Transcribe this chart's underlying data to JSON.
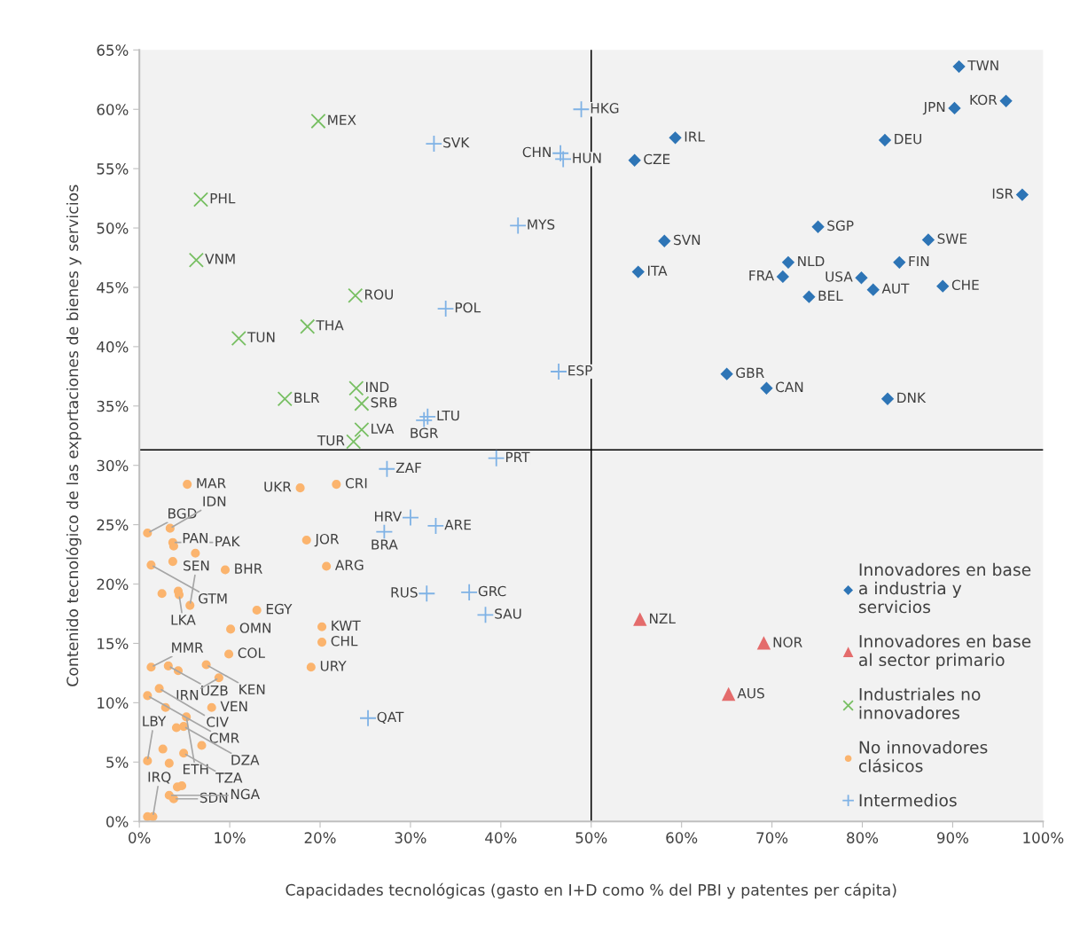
{
  "chart_data": {
    "type": "scatter",
    "xlabel": "Capacidades tecnológicas (gasto en I+D como % del PBI y patentes per cápita)",
    "ylabel": "Contenido tecnológico de las exportaciones de bienes y servicios",
    "xlim": [
      0,
      100
    ],
    "ylim": [
      0,
      65
    ],
    "xticks": [
      {
        "value": 0,
        "label": "0%"
      },
      {
        "value": 10,
        "label": "10%"
      },
      {
        "value": 20,
        "label": "20%"
      },
      {
        "value": 30,
        "label": "30%"
      },
      {
        "value": 40,
        "label": "40%"
      },
      {
        "value": 50,
        "label": "50%"
      },
      {
        "value": 60,
        "label": "60%"
      },
      {
        "value": 70,
        "label": "70%"
      },
      {
        "value": 80,
        "label": "80%"
      },
      {
        "value": 90,
        "label": "90%"
      },
      {
        "value": 100,
        "label": "100%"
      }
    ],
    "yticks": [
      {
        "value": 0,
        "label": "0%"
      },
      {
        "value": 5,
        "label": "5%"
      },
      {
        "value": 10,
        "label": "10%"
      },
      {
        "value": 15,
        "label": "15%"
      },
      {
        "value": 20,
        "label": "20%"
      },
      {
        "value": 25,
        "label": "25%"
      },
      {
        "value": 30,
        "label": "30%"
      },
      {
        "value": 35,
        "label": "35%"
      },
      {
        "value": 40,
        "label": "40%"
      },
      {
        "value": 45,
        "label": "45%"
      },
      {
        "value": 50,
        "label": "50%"
      },
      {
        "value": 55,
        "label": "55%"
      },
      {
        "value": 60,
        "label": "60%"
      },
      {
        "value": 65,
        "label": "65%"
      }
    ],
    "grid": false,
    "legend": "bottom right",
    "ref_lines": [
      {
        "axis": "x",
        "value": 50,
        "label": null,
        "color": "#000000"
      },
      {
        "axis": "y",
        "value": 31.3,
        "label": null,
        "color": "#000000"
      }
    ],
    "series": [
      {
        "name": "Innovadores en base\na industria y\nservicios",
        "color": "#2e75b6",
        "marker": "diamond",
        "x": [
          90.7,
          95.9,
          90.2,
          82.5,
          59.3,
          54.8,
          97.7,
          75.1,
          58.1,
          87.3,
          71.8,
          84.1,
          55.2,
          71.2,
          79.9,
          88.9,
          81.2,
          74.1,
          65.0,
          69.4,
          82.8
        ],
        "values": [
          63.6,
          60.7,
          60.1,
          57.4,
          57.6,
          55.7,
          52.8,
          50.1,
          48.9,
          49.0,
          47.1,
          47.1,
          46.3,
          45.9,
          45.8,
          45.1,
          44.8,
          44.2,
          37.7,
          36.5,
          35.6
        ]
      },
      {
        "name": "Innovadores en base\nal sector primario",
        "color": "#e46c6c",
        "marker": "triangle",
        "x": [
          55.4,
          69.1,
          65.2
        ],
        "values": [
          17.0,
          15.0,
          10.7
        ]
      },
      {
        "name": "Industriales no\ninnovadores",
        "color": "#78bf63",
        "marker": "x",
        "x": [
          19.8,
          6.8,
          6.3,
          23.9,
          18.6,
          11.0,
          24.0,
          16.1,
          24.6,
          24.6,
          23.7
        ],
        "values": [
          59.0,
          52.4,
          47.3,
          44.3,
          41.7,
          40.7,
          36.5,
          35.6,
          35.2,
          33.0,
          32.0
        ]
      },
      {
        "name": "No innovadores\nclásicos",
        "color": "#fbb46e",
        "marker": "circle",
        "x": [
          5.3,
          17.8,
          21.8,
          0.9,
          3.4,
          3.7,
          3.8,
          6.2,
          18.5,
          3.7,
          1.3,
          9.5,
          20.7,
          2.5,
          4.3,
          4.4,
          5.6,
          13.0,
          10.1,
          20.2,
          20.2,
          9.9,
          1.3,
          3.2,
          4.3,
          7.4,
          19.0,
          8.8,
          2.2,
          0.9,
          2.9,
          8.0,
          5.2,
          4.9,
          4.1,
          6.9,
          4.9,
          2.6,
          0.9,
          3.3,
          3.8,
          3.3,
          4.2,
          4.7,
          1.5,
          0.9
        ],
        "values": [
          28.4,
          28.1,
          28.4,
          24.3,
          24.7,
          23.5,
          23.2,
          22.6,
          23.7,
          21.9,
          21.6,
          21.2,
          21.5,
          19.2,
          19.4,
          19.1,
          18.2,
          17.8,
          16.2,
          16.4,
          15.1,
          14.1,
          13.0,
          13.1,
          12.7,
          13.2,
          13.0,
          12.1,
          11.2,
          10.6,
          9.6,
          9.6,
          8.8,
          8.0,
          7.9,
          6.4,
          5.75,
          6.1,
          5.1,
          4.9,
          1.9,
          2.2,
          2.9,
          3.0,
          0.4,
          0.4
        ]
      },
      {
        "name": "Intermedios",
        "color": "#7fb2e5",
        "marker": "cross",
        "x": [
          48.9,
          32.6,
          46.6,
          46.9,
          41.9,
          33.9,
          46.4,
          31.9,
          31.5,
          39.5,
          27.4,
          30.0,
          32.8,
          27.1,
          31.8,
          36.5,
          38.3,
          25.3
        ],
        "values": [
          60.0,
          57.1,
          56.3,
          55.8,
          50.2,
          43.2,
          37.9,
          34.1,
          33.8,
          30.6,
          29.7,
          25.6,
          24.9,
          24.4,
          19.2,
          19.3,
          17.4,
          8.7
        ]
      }
    ],
    "annotations": [
      {
        "text": "TWN",
        "x": 90.7,
        "y": 63.6
      },
      {
        "text": "KOR",
        "x": 95.9,
        "y": 60.7
      },
      {
        "text": "JPN",
        "x": 90.2,
        "y": 60.1
      },
      {
        "text": "DEU",
        "x": 82.5,
        "y": 57.4
      },
      {
        "text": "IRL",
        "x": 59.3,
        "y": 57.6
      },
      {
        "text": "CZE",
        "x": 54.8,
        "y": 55.7
      },
      {
        "text": "ISR",
        "x": 97.7,
        "y": 52.8
      },
      {
        "text": "SGP",
        "x": 75.1,
        "y": 50.1
      },
      {
        "text": "SVN",
        "x": 58.1,
        "y": 48.9
      },
      {
        "text": "SWE",
        "x": 87.3,
        "y": 49.0
      },
      {
        "text": "NLD",
        "x": 71.8,
        "y": 47.1
      },
      {
        "text": "FIN",
        "x": 84.1,
        "y": 47.1
      },
      {
        "text": "ITA",
        "x": 55.2,
        "y": 46.3
      },
      {
        "text": "FRA",
        "x": 71.2,
        "y": 45.9
      },
      {
        "text": "USA",
        "x": 79.9,
        "y": 45.8
      },
      {
        "text": "CHE",
        "x": 88.9,
        "y": 45.1
      },
      {
        "text": "AUT",
        "x": 81.2,
        "y": 44.8
      },
      {
        "text": "BEL",
        "x": 74.1,
        "y": 44.2
      },
      {
        "text": "GBR",
        "x": 65.0,
        "y": 37.7
      },
      {
        "text": "CAN",
        "x": 69.4,
        "y": 36.5
      },
      {
        "text": "DNK",
        "x": 82.8,
        "y": 35.6
      },
      {
        "text": "NZL",
        "x": 55.4,
        "y": 17.0
      },
      {
        "text": "NOR",
        "x": 69.1,
        "y": 15.0
      },
      {
        "text": "AUS",
        "x": 65.2,
        "y": 10.7
      },
      {
        "text": "MEX",
        "x": 19.8,
        "y": 59.0
      },
      {
        "text": "PHL",
        "x": 6.8,
        "y": 52.4
      },
      {
        "text": "VNM",
        "x": 6.3,
        "y": 47.3
      },
      {
        "text": "ROU",
        "x": 23.9,
        "y": 44.3
      },
      {
        "text": "THA",
        "x": 18.6,
        "y": 41.7
      },
      {
        "text": "TUN",
        "x": 11.0,
        "y": 40.7
      },
      {
        "text": "IND",
        "x": 24.0,
        "y": 36.5
      },
      {
        "text": "BLR",
        "x": 16.1,
        "y": 35.6
      },
      {
        "text": "SRB",
        "x": 24.6,
        "y": 35.2
      },
      {
        "text": "LVA",
        "x": 24.6,
        "y": 33.0
      },
      {
        "text": "TUR",
        "x": 23.7,
        "y": 32.0
      },
      {
        "text": "HKG",
        "x": 48.9,
        "y": 60.0
      },
      {
        "text": "SVK",
        "x": 32.6,
        "y": 57.1
      },
      {
        "text": "CHN",
        "x": 46.6,
        "y": 56.3
      },
      {
        "text": "HUN",
        "x": 46.9,
        "y": 55.8
      },
      {
        "text": "MYS",
        "x": 41.9,
        "y": 50.2
      },
      {
        "text": "POL",
        "x": 33.9,
        "y": 43.2
      },
      {
        "text": "ESP",
        "x": 46.4,
        "y": 37.9
      },
      {
        "text": "LTU",
        "x": 31.9,
        "y": 34.1
      },
      {
        "text": "BGR",
        "x": 31.5,
        "y": 33.8
      },
      {
        "text": "PRT",
        "x": 39.5,
        "y": 30.6
      },
      {
        "text": "ZAF",
        "x": 27.4,
        "y": 29.7
      },
      {
        "text": "HRV",
        "x": 30.0,
        "y": 25.6
      },
      {
        "text": "ARE",
        "x": 32.8,
        "y": 24.9
      },
      {
        "text": "BRA",
        "x": 27.1,
        "y": 24.4
      },
      {
        "text": "RUS",
        "x": 31.8,
        "y": 19.2
      },
      {
        "text": "GRC",
        "x": 36.5,
        "y": 19.3
      },
      {
        "text": "SAU",
        "x": 38.3,
        "y": 17.4
      },
      {
        "text": "QAT",
        "x": 25.3,
        "y": 8.7
      },
      {
        "text": "MAR",
        "x": 5.3,
        "y": 28.4
      },
      {
        "text": "UKR",
        "x": 17.8,
        "y": 28.1
      },
      {
        "text": "CRI",
        "x": 21.8,
        "y": 28.4
      },
      {
        "text": "BGD",
        "x": 0.9,
        "y": 24.3
      },
      {
        "text": "IDN",
        "x": 3.4,
        "y": 24.7
      },
      {
        "text": "PAK",
        "x": 3.7,
        "y": 23.5
      },
      {
        "text": "PAN",
        "x": 6.2,
        "y": 22.6
      },
      {
        "text": "JOR",
        "x": 18.5,
        "y": 23.7
      },
      {
        "text": "GTM",
        "x": 1.3,
        "y": 21.6
      },
      {
        "text": "BHR",
        "x": 9.5,
        "y": 21.2
      },
      {
        "text": "ARG",
        "x": 20.7,
        "y": 21.5
      },
      {
        "text": "LKA",
        "x": 4.4,
        "y": 19.1
      },
      {
        "text": "SEN",
        "x": 5.6,
        "y": 18.2
      },
      {
        "text": "EGY",
        "x": 13.0,
        "y": 17.8
      },
      {
        "text": "OMN",
        "x": 10.1,
        "y": 16.2
      },
      {
        "text": "KWT",
        "x": 20.2,
        "y": 16.4
      },
      {
        "text": "CHL",
        "x": 20.2,
        "y": 15.1
      },
      {
        "text": "COL",
        "x": 9.9,
        "y": 14.1
      },
      {
        "text": "MMR",
        "x": 1.3,
        "y": 13.0
      },
      {
        "text": "UZB",
        "x": 3.2,
        "y": 13.1
      },
      {
        "text": "KEN",
        "x": 7.4,
        "y": 13.2
      },
      {
        "text": "URY",
        "x": 19.0,
        "y": 13.0
      },
      {
        "text": "IRN",
        "x": 8.8,
        "y": 12.1
      },
      {
        "text": "CIV",
        "x": 2.2,
        "y": 11.2
      },
      {
        "text": "CMR",
        "x": 0.9,
        "y": 10.6
      },
      {
        "text": "VEN",
        "x": 8.0,
        "y": 9.6
      },
      {
        "text": "ETH",
        "x": 5.2,
        "y": 8.8
      },
      {
        "text": "DZA",
        "x": 4.9,
        "y": 8.0
      },
      {
        "text": "TZA",
        "x": 4.9,
        "y": 5.75
      },
      {
        "text": "LBY",
        "x": 0.9,
        "y": 5.1
      },
      {
        "text": "SDN",
        "x": 3.8,
        "y": 1.9
      },
      {
        "text": "NGA",
        "x": 3.3,
        "y": 2.2
      },
      {
        "text": "IRQ",
        "x": 1.5,
        "y": 0.4
      }
    ]
  }
}
